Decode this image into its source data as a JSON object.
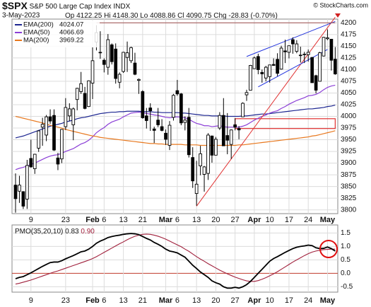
{
  "header": {
    "symbol": "$SPX",
    "name": "S&P 500 Large Cap Index",
    "exchange": "INDX",
    "date": "3-May-2023",
    "source": "© StockCharts.com",
    "labels": {
      "open": "Op",
      "high": "Hi",
      "low": "Lo",
      "close": "Cl",
      "change": "Chg"
    },
    "last_labels": {
      "open": "4122.25",
      "high": "4148.30",
      "low": "4088.86",
      "close": "4090.75"
    },
    "change": -28.83,
    "change_pct": {
      "value": -0.7,
      "label": "(-0.70%)"
    }
  },
  "chart_data": [
    {
      "type": "candlestick",
      "categories": [
        "Jan 3",
        "Jan 4",
        "Jan 5",
        "Jan 6",
        "Jan 9",
        "Jan 10",
        "Jan 11",
        "Jan 12",
        "Jan 13",
        "Jan 17",
        "Jan 18",
        "Jan 19",
        "Jan 20",
        "Jan 23",
        "Jan 24",
        "Jan 25",
        "Jan 26",
        "Jan 27",
        "Jan 30",
        "Jan 31",
        "Feb 1",
        "Feb 2",
        "Feb 3",
        "Feb 6",
        "Feb 7",
        "Feb 8",
        "Feb 9",
        "Feb 10",
        "Feb 13",
        "Feb 14",
        "Feb 15",
        "Feb 16",
        "Feb 17",
        "Feb 21",
        "Feb 22",
        "Feb 23",
        "Feb 24",
        "Feb 27",
        "Feb 28",
        "Mar 1",
        "Mar 2",
        "Mar 3",
        "Mar 6",
        "Mar 7",
        "Mar 8",
        "Mar 9",
        "Mar 10",
        "Mar 13",
        "Mar 14",
        "Mar 15",
        "Mar 16",
        "Mar 17",
        "Mar 20",
        "Mar 21",
        "Mar 22",
        "Mar 23",
        "Mar 24",
        "Mar 27",
        "Mar 28",
        "Mar 29",
        "Mar 30",
        "Mar 31",
        "Apr 3",
        "Apr 4",
        "Apr 5",
        "Apr 6",
        "Apr 10",
        "Apr 11",
        "Apr 12",
        "Apr 13",
        "Apr 14",
        "Apr 17",
        "Apr 18",
        "Apr 19",
        "Apr 20",
        "Apr 21",
        "Apr 24",
        "Apr 25",
        "Apr 26",
        "Apr 27",
        "Apr 28",
        "May 1",
        "May 2",
        "May 3"
      ],
      "open": [
        3853,
        3840,
        3839,
        3823,
        3910,
        3888,
        3932,
        3977,
        3960,
        3999,
        4002,
        3911,
        3909,
        3978,
        4001,
        3982,
        4036,
        4053,
        4049,
        4021,
        4071,
        4159,
        4137,
        4120,
        4105,
        4153,
        4144,
        4073,
        4096,
        4126,
        4119,
        4114,
        4077,
        4053,
        4001,
        4018,
        3973,
        3992,
        3978,
        3964,
        3938,
        3998,
        4055,
        4048,
        3987,
        3998,
        3912,
        3835,
        3894,
        3876,
        3878,
        3958,
        3917,
        3975,
        4002,
        3959,
        3940,
        3982,
        3974,
        3999,
        4046,
        4056,
        4102,
        4128,
        4094,
        4082,
        4085,
        4111,
        4122,
        4101,
        4140,
        4137,
        4164,
        4139,
        4131,
        4132,
        4132,
        4126,
        4087,
        4075,
        4129,
        4166,
        4165,
        4122.25
      ],
      "high": [
        3878,
        3873,
        3840,
        3907,
        3950,
        3920,
        3970,
        3997,
        4003,
        4015,
        4015,
        3922,
        3973,
        4039,
        4028,
        4019,
        4061,
        4095,
        4063,
        4077,
        4148,
        4195,
        4182,
        4124,
        4176,
        4156,
        4156,
        4094,
        4138,
        4160,
        4149,
        4136,
        4081,
        4056,
        4018,
        4028,
        3978,
        4018,
        3994,
        3972,
        3990,
        4048,
        4078,
        4050,
        4000,
        4018,
        3934,
        3905,
        3937,
        3894,
        3964,
        3959,
        3956,
        4009,
        4039,
        4007,
        3972,
        3996,
        3979,
        4030,
        4057,
        4110,
        4128,
        4134,
        4100,
        4108,
        4110,
        4124,
        4135,
        4151,
        4164,
        4151,
        4169,
        4163,
        4149,
        4138,
        4143,
        4127,
        4089,
        4138,
        4170,
        4186,
        4165,
        4148.3
      ],
      "low": [
        3794,
        3815,
        3802,
        3802,
        3890,
        3877,
        3924,
        3937,
        3947,
        3984,
        3926,
        3885,
        3900,
        3971,
        3990,
        3949,
        4013,
        4048,
        4015,
        4020,
        4037,
        4141,
        4123,
        4094,
        4089,
        4111,
        4070,
        4060,
        4093,
        4095,
        4114,
        4088,
        4048,
        3995,
        3974,
        3969,
        3943,
        3977,
        3968,
        3939,
        3928,
        3991,
        4044,
        3981,
        3970,
        3912,
        3847,
        3809,
        3874,
        3839,
        3864,
        3901,
        3917,
        3971,
        3937,
        3919,
        3909,
        3970,
        3951,
        3999,
        4033,
        4056,
        4102,
        4090,
        4072,
        4075,
        4072,
        4108,
        4086,
        4100,
        4114,
        4124,
        4134,
        4135,
        4115,
        4114,
        4117,
        4072,
        4049,
        4075,
        4128,
        4163,
        4098,
        4088.86
      ],
      "close": [
        3824,
        3853,
        3808,
        3895,
        3892,
        3919,
        3969,
        3983,
        3999,
        3990,
        3928,
        3898,
        3972,
        4019,
        4016,
        4016,
        4060,
        4070,
        4017,
        4076,
        4119,
        4179,
        4136,
        4111,
        4164,
        4117,
        4081,
        4090,
        4137,
        4136,
        4147,
        4090,
        4079,
        3997,
        3991,
        4012,
        3970,
        3982,
        3970,
        3951,
        3981,
        4045,
        4048,
        3986,
        3992,
        3918,
        3862,
        3855,
        3920,
        3892,
        3960,
        3917,
        3951,
        4002,
        3937,
        3949,
        3971,
        3977,
        3971,
        4028,
        4051,
        4109,
        4125,
        4100,
        4091,
        4105,
        4110,
        4109,
        4092,
        4146,
        4138,
        4151,
        4155,
        4155,
        4130,
        4133,
        4137,
        4072,
        4056,
        4136,
        4169,
        4168,
        4120,
        4090.75
      ],
      "candle_color": "#000000",
      "series": [
        {
          "name": "EMA(200)",
          "color": "#1c2590",
          "values": [
            3954,
            3956,
            3958,
            3961,
            3964,
            3967,
            3970,
            3973,
            3976,
            3979,
            3981,
            3983,
            3985,
            3988,
            3990,
            3992,
            3995,
            3997,
            3998,
            4000,
            4002,
            4004,
            4006,
            4007,
            4008,
            4009,
            4009,
            4010,
            4010,
            4011,
            4011,
            4011,
            4011,
            4010,
            4010,
            4010,
            4009,
            4009,
            4008,
            4008,
            4008,
            4008,
            4008,
            4007,
            4007,
            4006,
            4005,
            4004,
            4003,
            4002,
            4002,
            4001,
            4001,
            4001,
            4001,
            4000,
            4000,
            4000,
            4000,
            4001,
            4001,
            4002,
            4003,
            4004,
            4005,
            4005,
            4006,
            4007,
            4008,
            4009,
            4010,
            4011,
            4012,
            4013,
            4014,
            4015,
            4016,
            4016,
            4017,
            4018,
            4019,
            4021,
            4022,
            4024.07
          ]
        },
        {
          "name": "EMA(50)",
          "color": "#8b3fd6",
          "values": [
            3886,
            3889,
            3891,
            3894,
            3897,
            3900,
            3904,
            3908,
            3912,
            3915,
            3917,
            3918,
            3921,
            3925,
            3928,
            3931,
            3936,
            3941,
            3944,
            3949,
            3956,
            3965,
            3971,
            3976,
            3983,
            3988,
            3991,
            3994,
            3999,
            4003,
            4007,
            4008,
            4009,
            4008,
            4006,
            4005,
            4003,
            4002,
            4000,
            3998,
            3997,
            3998,
            3999,
            3998,
            3997,
            3994,
            3989,
            3985,
            3983,
            3980,
            3980,
            3978,
            3979,
            3980,
            3978,
            3977,
            3977,
            3977,
            3977,
            3979,
            3982,
            3987,
            3992,
            3996,
            4000,
            4003,
            4007,
            4010,
            4012,
            4017,
            4021,
            4026,
            4030,
            4034,
            4037,
            4040,
            4044,
            4045,
            4047,
            4051,
            4057,
            4062,
            4065,
            4066.69
          ]
        },
        {
          "name": "MA(200)",
          "color": "#e8781e",
          "values": [
            4000,
            3998,
            3996,
            3994,
            3992,
            3990,
            3988,
            3986,
            3983,
            3981,
            3979,
            3977,
            3975,
            3972,
            3970,
            3968,
            3966,
            3964,
            3962,
            3960,
            3958,
            3957,
            3955,
            3954,
            3953,
            3952,
            3951,
            3950,
            3949,
            3948,
            3947,
            3946,
            3945,
            3944,
            3943,
            3942,
            3942,
            3941,
            3941,
            3940,
            3940,
            3940,
            3940,
            3940,
            3939,
            3939,
            3939,
            3939,
            3938,
            3938,
            3938,
            3938,
            3938,
            3938,
            3938,
            3938,
            3938,
            3938,
            3939,
            3939,
            3940,
            3941,
            3942,
            3943,
            3944,
            3945,
            3946,
            3947,
            3948,
            3949,
            3950,
            3951,
            3952,
            3953,
            3954,
            3955,
            3956,
            3958,
            3959,
            3961,
            3963,
            3965,
            3967,
            3969.22
          ]
        }
      ],
      "lines": [
        {
          "color": "#e03030",
          "x": [
            "Mar 13",
            "May 3"
          ],
          "y": [
            3808,
            4212
          ]
        },
        {
          "color": "#2233dd",
          "x": [
            "Mar 30",
            "May 3"
          ],
          "y": [
            4128,
            4203
          ]
        },
        {
          "color": "#2233dd",
          "x": [
            "Apr 4",
            "May 1"
          ],
          "y": [
            4063,
            4143
          ]
        },
        {
          "color": "#a05050",
          "x": [
            "Feb 2",
            "May 3"
          ],
          "y": [
            4200,
            4200
          ]
        }
      ],
      "rects": [
        {
          "color": "#e03030",
          "x": [
            "Mar 27",
            "May 3"
          ],
          "y": [
            3974,
            3995
          ]
        }
      ],
      "ylim": [
        3792,
        4208
      ],
      "yticks": [
        3800,
        3825,
        3850,
        3875,
        3900,
        3925,
        3950,
        3975,
        4000,
        4025,
        4050,
        4075,
        4100,
        4125,
        4150,
        4175,
        4200
      ],
      "xticks": [
        {
          "value": "Jan 9",
          "label": "9"
        },
        {
          "value": "Jan 23",
          "label": "23"
        },
        {
          "value": "Feb 1",
          "label": "Feb"
        },
        {
          "value": "Feb 6",
          "label": "6"
        },
        {
          "value": "Feb 13",
          "label": "13"
        },
        {
          "value": "Feb 21",
          "label": "21"
        },
        {
          "value": "Mar 1",
          "label": "Mar"
        },
        {
          "value": "Mar 6",
          "label": "6"
        },
        {
          "value": "Mar 13",
          "label": "13"
        },
        {
          "value": "Mar 20",
          "label": "20"
        },
        {
          "value": "Mar 27",
          "label": "27"
        },
        {
          "value": "Apr 3",
          "label": "Apr"
        },
        {
          "value": "Apr 10",
          "label": "10"
        },
        {
          "value": "Apr 17",
          "label": "17"
        },
        {
          "value": "Apr 24",
          "label": "24"
        },
        {
          "value": "May 1",
          "label": "May"
        }
      ],
      "grid": true
    },
    {
      "type": "line",
      "series": [
        {
          "name": "PMO(35,20,10)",
          "color": "#000000",
          "values": [
            -0.2,
            -0.15,
            -0.12,
            -0.05,
            0.02,
            0.1,
            0.18,
            0.26,
            0.33,
            0.4,
            0.42,
            0.42,
            0.47,
            0.54,
            0.6,
            0.66,
            0.73,
            0.8,
            0.83,
            0.9,
            1.0,
            1.12,
            1.2,
            1.26,
            1.33,
            1.37,
            1.4,
            1.42,
            1.45,
            1.47,
            1.48,
            1.47,
            1.44,
            1.37,
            1.3,
            1.24,
            1.15,
            1.08,
            1.0,
            0.9,
            0.83,
            0.8,
            0.76,
            0.68,
            0.6,
            0.45,
            0.3,
            0.18,
            0.05,
            -0.05,
            -0.15,
            -0.28,
            -0.35,
            -0.4,
            -0.5,
            -0.55,
            -0.55,
            -0.52,
            -0.55,
            -0.5,
            -0.42,
            -0.3,
            -0.15,
            0.0,
            0.15,
            0.3,
            0.45,
            0.55,
            0.62,
            0.7,
            0.78,
            0.85,
            0.92,
            0.97,
            1.0,
            1.02,
            1.05,
            1.03,
            0.95,
            0.92,
            0.93,
            0.98,
            0.92,
            0.83
          ]
        },
        {
          "color": "#a0203c",
          "last_label": "0.90",
          "values": [
            -0.4,
            -0.37,
            -0.33,
            -0.29,
            -0.25,
            -0.2,
            -0.15,
            -0.1,
            -0.05,
            0.0,
            0.05,
            0.09,
            0.14,
            0.19,
            0.24,
            0.29,
            0.34,
            0.39,
            0.44,
            0.49,
            0.55,
            0.62,
            0.7,
            0.78,
            0.86,
            0.94,
            1.02,
            1.1,
            1.17,
            1.25,
            1.32,
            1.38,
            1.42,
            1.45,
            1.46,
            1.45,
            1.42,
            1.38,
            1.33,
            1.27,
            1.2,
            1.13,
            1.06,
            0.99,
            0.9,
            0.82,
            0.72,
            0.62,
            0.53,
            0.45,
            0.36,
            0.28,
            0.2,
            0.12,
            0.05,
            -0.02,
            -0.08,
            -0.14,
            -0.19,
            -0.24,
            -0.28,
            -0.3,
            -0.3,
            -0.27,
            -0.22,
            -0.16,
            -0.09,
            -0.02,
            0.06,
            0.15,
            0.24,
            0.33,
            0.42,
            0.5,
            0.58,
            0.66,
            0.73,
            0.79,
            0.83,
            0.86,
            0.88,
            0.89,
            0.9,
            0.9
          ]
        }
      ],
      "ylim": [
        -0.7,
        1.8
      ],
      "yticks": [
        -0.5,
        {
          "value": 0,
          "label": "0.0"
        },
        0.5,
        {
          "value": 1,
          "label": "1.0"
        },
        1.5
      ],
      "zero_line": "#c0392b",
      "grid": true
    }
  ]
}
